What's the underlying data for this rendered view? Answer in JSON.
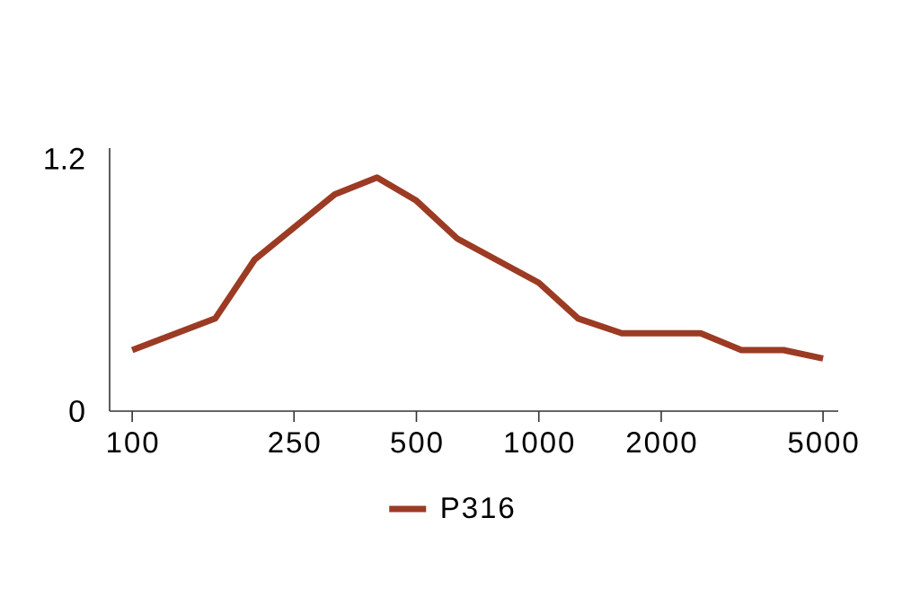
{
  "chart_data": {
    "type": "line",
    "x": [
      100,
      160,
      200,
      315,
      400,
      500,
      630,
      1000,
      1250,
      1600,
      2500,
      3150,
      4000,
      5000
    ],
    "series": [
      {
        "name": "P316",
        "color": "#9c3b24",
        "values": [
          0.29,
          0.44,
          0.72,
          1.03,
          1.11,
          1.0,
          0.82,
          0.61,
          0.44,
          0.37,
          0.37,
          0.29,
          0.29,
          0.25
        ]
      }
    ],
    "log": "x",
    "xlim": [
      88,
      5450
    ],
    "ylim": [
      0,
      1.25
    ],
    "xticks": [
      100,
      250,
      500,
      1000,
      2000,
      5000
    ],
    "yticks": [
      0,
      1.2
    ],
    "legend": "bottom",
    "marker": "none",
    "line_style": "solid"
  }
}
